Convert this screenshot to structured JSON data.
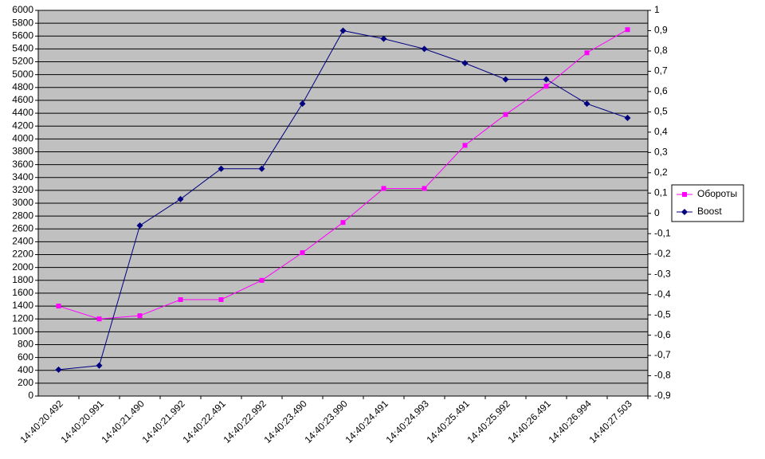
{
  "chart_data": {
    "type": "line",
    "categories": [
      "14:40:20.492",
      "14:40:20.991",
      "14:40:21.490",
      "14:40:21.992",
      "14:40:22.491",
      "14:40:22.992",
      "14:40:23.490",
      "14:40:23.990",
      "14:40:24.491",
      "14:40:24.993",
      "14:40:25.491",
      "14:40:25.992",
      "14:40:26.491",
      "14:40:26.994",
      "14:40:27.503"
    ],
    "series": [
      {
        "name": "Обороты",
        "color": "#ff00ff",
        "marker": "square",
        "values": [
          1400,
          1200,
          1250,
          1500,
          1500,
          1800,
          2230,
          2700,
          3230,
          3230,
          3900,
          4380,
          4820,
          5340,
          5700
        ]
      },
      {
        "name": "Boost",
        "color": "#000080",
        "marker": "diamond",
        "axis": "y2",
        "values": [
          -0.77,
          -0.75,
          -0.06,
          0.07,
          0.22,
          0.22,
          0.54,
          0.9,
          0.86,
          0.81,
          0.74,
          0.66,
          0.66,
          0.54,
          0.47
        ]
      }
    ],
    "ylim": [
      0,
      6000
    ],
    "yticks": [
      0,
      200,
      400,
      600,
      800,
      1000,
      1200,
      1400,
      1600,
      1800,
      2000,
      2200,
      2400,
      2600,
      2800,
      3000,
      3200,
      3400,
      3600,
      3800,
      4000,
      4200,
      4400,
      4600,
      4800,
      5000,
      5200,
      5400,
      5600,
      5800,
      6000
    ],
    "y2lim": [
      -0.9,
      1
    ],
    "y2ticks": [
      {
        "value": -0.9,
        "label": "-0,9"
      },
      {
        "value": -0.8,
        "label": "-0,8"
      },
      {
        "value": -0.7,
        "label": "-0,7"
      },
      {
        "value": -0.6,
        "label": "-0,6"
      },
      {
        "value": -0.5,
        "label": "-0,5"
      },
      {
        "value": -0.4,
        "label": "-0,4"
      },
      {
        "value": -0.3,
        "label": "-0,3"
      },
      {
        "value": -0.2,
        "label": "-0,2"
      },
      {
        "value": -0.1,
        "label": "-0,1"
      },
      0,
      {
        "value": 0.1,
        "label": "0,1"
      },
      {
        "value": 0.2,
        "label": "0,2"
      },
      {
        "value": 0.3,
        "label": "0,3"
      },
      {
        "value": 0.4,
        "label": "0,4"
      },
      {
        "value": 0.5,
        "label": "0,5"
      },
      {
        "value": 0.6,
        "label": "0,6"
      },
      {
        "value": 0.7,
        "label": "0,7"
      },
      {
        "value": 0.8,
        "label": "0,8"
      },
      {
        "value": 0.9,
        "label": "0,9"
      },
      1
    ],
    "grid": true,
    "plot_background": "#c0c0c0",
    "legend": "right"
  }
}
